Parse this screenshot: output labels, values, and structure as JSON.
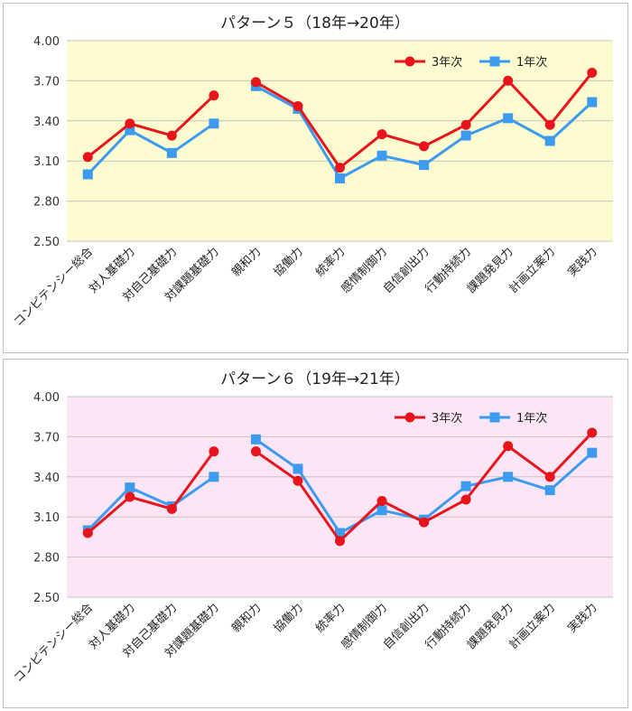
{
  "colors": {
    "series_3nen": "#e8141b",
    "series_1nen": "#3d9bef",
    "plot1_bg": "#fdfbd0",
    "plot2_bg": "#fce6f6"
  },
  "chart_data": [
    {
      "type": "line",
      "title": "パターン５（18年→20年）",
      "xlabel": "",
      "ylabel": "",
      "ylim": [
        2.5,
        4.0
      ],
      "yticks": [
        "4.00",
        "3.70",
        "3.40",
        "3.10",
        "2.80",
        "2.50"
      ],
      "grid": true,
      "legend": "top-right",
      "categories": [
        "コンピテンシー総合",
        "対人基礎力",
        "対自己基礎力",
        "対課題基礎力",
        "親和力",
        "協働力",
        "統率力",
        "感情制御力",
        "自信創出力",
        "行動持続力",
        "課題発見力",
        "計画立案力",
        "実践力"
      ],
      "segments": [
        [
          0,
          3
        ],
        [
          4,
          12
        ]
      ],
      "series": [
        {
          "name": "3年次",
          "color": "#e8141b",
          "marker": "circle",
          "values": [
            3.13,
            3.38,
            3.29,
            3.59,
            3.69,
            3.51,
            3.05,
            3.3,
            3.21,
            3.37,
            3.7,
            3.37,
            3.76
          ]
        },
        {
          "name": "1年次",
          "color": "#3d9bef",
          "marker": "square",
          "values": [
            3.0,
            3.33,
            3.16,
            3.38,
            3.66,
            3.49,
            2.97,
            3.14,
            3.07,
            3.29,
            3.42,
            3.25,
            3.54
          ]
        }
      ]
    },
    {
      "type": "line",
      "title": "パターン６（19年→21年）",
      "xlabel": "",
      "ylabel": "",
      "ylim": [
        2.5,
        4.0
      ],
      "yticks": [
        "4.00",
        "3.70",
        "3.40",
        "3.10",
        "2.80",
        "2.50"
      ],
      "grid": true,
      "legend": "top-right",
      "categories": [
        "コンピテンシー総合",
        "対人基礎力",
        "対自己基礎力",
        "対課題基礎力",
        "親和力",
        "協働力",
        "統率力",
        "感情制御力",
        "自信創出力",
        "行動持続力",
        "課題発見力",
        "計画立案力",
        "実践力"
      ],
      "segments": [
        [
          0,
          3
        ],
        [
          4,
          12
        ]
      ],
      "series": [
        {
          "name": "3年次",
          "color": "#e8141b",
          "marker": "circle",
          "values": [
            2.98,
            3.25,
            3.16,
            3.59,
            3.59,
            3.37,
            2.92,
            3.22,
            3.06,
            3.23,
            3.63,
            3.4,
            3.73
          ]
        },
        {
          "name": "1年次",
          "color": "#3d9bef",
          "marker": "square",
          "values": [
            3.0,
            3.32,
            3.18,
            3.4,
            3.68,
            3.46,
            2.98,
            3.15,
            3.08,
            3.33,
            3.4,
            3.3,
            3.58
          ]
        }
      ]
    }
  ]
}
